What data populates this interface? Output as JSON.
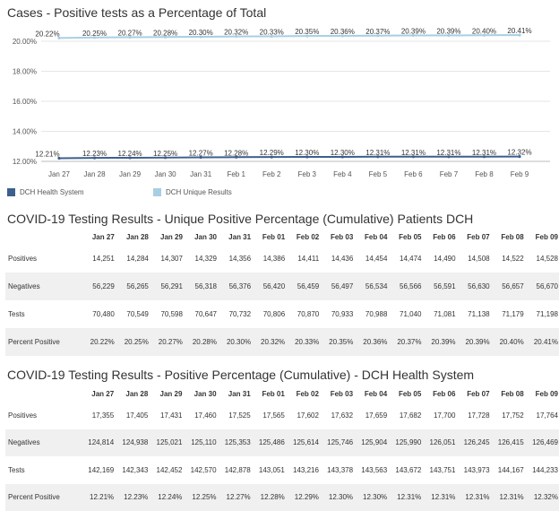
{
  "chart_title": "Cases - Positive tests as a Percentage of Total",
  "chart_data": {
    "type": "line",
    "title": "Cases - Positive tests as a Percentage of Total",
    "categories": [
      "Jan 27",
      "Jan 28",
      "Jan 29",
      "Jan 30",
      "Jan 31",
      "Feb 1",
      "Feb 2",
      "Feb 3",
      "Feb 4",
      "Feb 5",
      "Feb 6",
      "Feb 7",
      "Feb 8",
      "Feb 9"
    ],
    "y_ticks": [
      "20.00%",
      "18.00%",
      "16.00%",
      "14.00%",
      "12.00%"
    ],
    "ylim": [
      12,
      20
    ],
    "grid": true,
    "legend_position": "bottom-left",
    "series": [
      {
        "name": "DCH Health System",
        "color": "#3d5f8f",
        "values": [
          12.21,
          12.23,
          12.24,
          12.25,
          12.27,
          12.28,
          12.29,
          12.3,
          12.3,
          12.31,
          12.31,
          12.31,
          12.31,
          12.32
        ],
        "labels": [
          "12.21%",
          "12.23%",
          "12.24%",
          "12.25%",
          "12.27%",
          "12.28%",
          "12.29%",
          "12.30%",
          "12.30%",
          "12.31%",
          "12.31%",
          "12.31%",
          "12.31%",
          "12.32%"
        ]
      },
      {
        "name": "DCH Unique Results",
        "color": "#a7cfe3",
        "values": [
          20.22,
          20.25,
          20.27,
          20.28,
          20.3,
          20.32,
          20.33,
          20.35,
          20.36,
          20.37,
          20.39,
          20.39,
          20.4,
          20.41
        ],
        "labels": [
          "20.22%",
          "20.25%",
          "20.27%",
          "20.28%",
          "20.30%",
          "20.32%",
          "20.33%",
          "20.35%",
          "20.36%",
          "20.37%",
          "20.39%",
          "20.39%",
          "20.40%",
          "20.41%"
        ]
      }
    ]
  },
  "legend": [
    {
      "name": "DCH Health System",
      "color": "#3d5f8f"
    },
    {
      "name": "DCH Unique Results",
      "color": "#a7cfe3"
    }
  ],
  "table1": {
    "title": "COVID-19 Testing Results - Unique Positive Percentage (Cumulative) Patients DCH",
    "columns": [
      "Jan 27",
      "Jan 28",
      "Jan 29",
      "Jan 30",
      "Jan 31",
      "Feb 01",
      "Feb 02",
      "Feb 03",
      "Feb 04",
      "Feb 05",
      "Feb 06",
      "Feb 07",
      "Feb 08",
      "Feb 09"
    ],
    "rows": [
      {
        "label": "Positives",
        "values": [
          "14,251",
          "14,284",
          "14,307",
          "14,329",
          "14,356",
          "14,386",
          "14,411",
          "14,436",
          "14,454",
          "14,474",
          "14,490",
          "14,508",
          "14,522",
          "14,528"
        ]
      },
      {
        "label": "Negatives",
        "values": [
          "56,229",
          "56,265",
          "56,291",
          "56,318",
          "56,376",
          "56,420",
          "56,459",
          "56,497",
          "56,534",
          "56,566",
          "56,591",
          "56,630",
          "56,657",
          "56,670"
        ]
      },
      {
        "label": "Tests",
        "values": [
          "70,480",
          "70,549",
          "70,598",
          "70,647",
          "70,732",
          "70,806",
          "70,870",
          "70,933",
          "70,988",
          "71,040",
          "71,081",
          "71,138",
          "71,179",
          "71,198"
        ]
      },
      {
        "label": "Percent Positive",
        "values": [
          "20.22%",
          "20.25%",
          "20.27%",
          "20.28%",
          "20.30%",
          "20.32%",
          "20.33%",
          "20.35%",
          "20.36%",
          "20.37%",
          "20.39%",
          "20.39%",
          "20.40%",
          "20.41%"
        ]
      }
    ]
  },
  "table2": {
    "title": "COVID-19 Testing Results - Positive Percentage (Cumulative) - DCH Health System",
    "columns": [
      "Jan 27",
      "Jan 28",
      "Jan 29",
      "Jan 30",
      "Jan 31",
      "Feb 01",
      "Feb 02",
      "Feb 03",
      "Feb 04",
      "Feb 05",
      "Feb 06",
      "Feb 07",
      "Feb 08",
      "Feb 09"
    ],
    "rows": [
      {
        "label": "Positives",
        "values": [
          "17,355",
          "17,405",
          "17,431",
          "17,460",
          "17,525",
          "17,565",
          "17,602",
          "17,632",
          "17,659",
          "17,682",
          "17,700",
          "17,728",
          "17,752",
          "17,764"
        ]
      },
      {
        "label": "Negatives",
        "values": [
          "124,814",
          "124,938",
          "125,021",
          "125,110",
          "125,353",
          "125,486",
          "125,614",
          "125,746",
          "125,904",
          "125,990",
          "126,051",
          "126,245",
          "126,415",
          "126,469"
        ]
      },
      {
        "label": "Tests",
        "values": [
          "142,169",
          "142,343",
          "142,452",
          "142,570",
          "142,878",
          "143,051",
          "143,216",
          "143,378",
          "143,563",
          "143,672",
          "143,751",
          "143,973",
          "144,167",
          "144,233"
        ]
      },
      {
        "label": "Percent Positive",
        "values": [
          "12.21%",
          "12.23%",
          "12.24%",
          "12.25%",
          "12.27%",
          "12.28%",
          "12.29%",
          "12.30%",
          "12.30%",
          "12.31%",
          "12.31%",
          "12.31%",
          "12.31%",
          "12.32%"
        ]
      }
    ]
  }
}
